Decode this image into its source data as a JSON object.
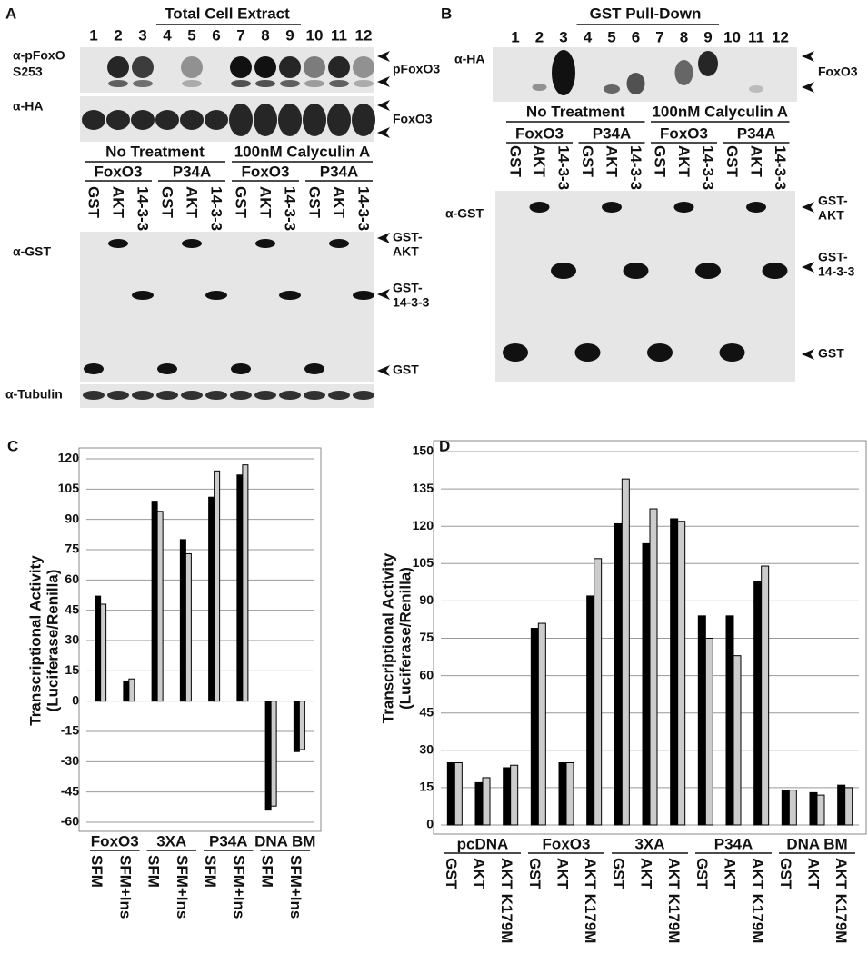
{
  "panel_a": {
    "label": "A",
    "title": "Total Cell Extract",
    "lanes": [
      "1",
      "2",
      "3",
      "4",
      "5",
      "6",
      "7",
      "8",
      "9",
      "10",
      "11",
      "12"
    ],
    "antibodies": {
      "pfoxo": [
        "α-pFoxO",
        "S253"
      ],
      "ha": "α-HA",
      "gst": "α-GST",
      "tubulin": "α-Tubulin"
    },
    "markers": {
      "pfoxo3": "pFoxO3",
      "foxo3": "FoxO3",
      "gst_akt": [
        "GST-",
        "AKT"
      ],
      "gst_1433": [
        "GST-",
        "14-3-3"
      ],
      "gst": "GST"
    },
    "treatments": [
      "No Treatment",
      "100nM Calyculin A"
    ],
    "constructs": [
      "FoxO3",
      "P34A",
      "FoxO3",
      "P34A"
    ],
    "baits": [
      "GST",
      "AKT",
      "14-3-3"
    ]
  },
  "panel_b": {
    "label": "B",
    "title": "GST Pull-Down",
    "lanes": [
      "1",
      "2",
      "3",
      "4",
      "5",
      "6",
      "7",
      "8",
      "9",
      "10",
      "11",
      "12"
    ],
    "antibodies": {
      "ha": "α-HA",
      "gst": "α-GST"
    },
    "markers": {
      "foxo3": "FoxO3",
      "gst_akt": [
        "GST-",
        "AKT"
      ],
      "gst_1433": [
        "GST-",
        "14-3-3"
      ],
      "gst": "GST"
    },
    "treatments": [
      "No Treatment",
      "100nM Calyculin A"
    ],
    "constructs": [
      "FoxO3",
      "P34A",
      "FoxO3",
      "P34A"
    ],
    "baits": [
      "GST",
      "AKT",
      "14-3-3"
    ]
  },
  "chart_data": [
    {
      "type": "bar",
      "panel": "C",
      "ylabel": [
        "Transcriptional Activity",
        "(Luciferase/Renilla)"
      ],
      "groups": [
        "FoxO3",
        "3XA",
        "P34A",
        "DNA BM"
      ],
      "categories": [
        "SFM",
        "SFM+Ins",
        "SFM",
        "SFM+Ins",
        "SFM",
        "SFM+Ins",
        "SFM",
        "SFM+Ins"
      ],
      "series": [
        {
          "color": "#000000",
          "values": [
            52,
            10,
            99,
            80,
            101,
            112,
            -54,
            -25
          ]
        },
        {
          "color": "#cccccc",
          "values": [
            48,
            11,
            94,
            73,
            114,
            117,
            -52,
            -24
          ]
        }
      ],
      "ylim": [
        -60,
        120
      ],
      "yticks": [
        -60,
        -45,
        -30,
        -15,
        0,
        15,
        30,
        45,
        60,
        75,
        90,
        105,
        120
      ],
      "grid": true
    },
    {
      "type": "bar",
      "panel": "D",
      "ylabel": [
        "Transcriptional Activity",
        "(Luciferase/Renilla)"
      ],
      "groups": [
        "pcDNA",
        "FoxO3",
        "3XA",
        "P34A",
        "DNA BM"
      ],
      "categories": [
        "GST",
        "AKT",
        "AKT K179M",
        "GST",
        "AKT",
        "AKT K179M",
        "GST",
        "AKT",
        "AKT K179M",
        "GST",
        "AKT",
        "AKT K179M",
        "GST",
        "AKT",
        "AKT K179M"
      ],
      "series": [
        {
          "color": "#000000",
          "values": [
            25,
            17,
            23,
            79,
            25,
            92,
            121,
            113,
            123,
            84,
            84,
            98,
            14,
            13,
            16
          ]
        },
        {
          "color": "#cccccc",
          "values": [
            25,
            19,
            24,
            81,
            25,
            107,
            139,
            127,
            122,
            75,
            68,
            104,
            14,
            12,
            15
          ]
        }
      ],
      "ylim": [
        0,
        150
      ],
      "yticks": [
        0,
        15,
        30,
        45,
        60,
        75,
        90,
        105,
        120,
        135,
        150
      ],
      "grid": true
    }
  ]
}
